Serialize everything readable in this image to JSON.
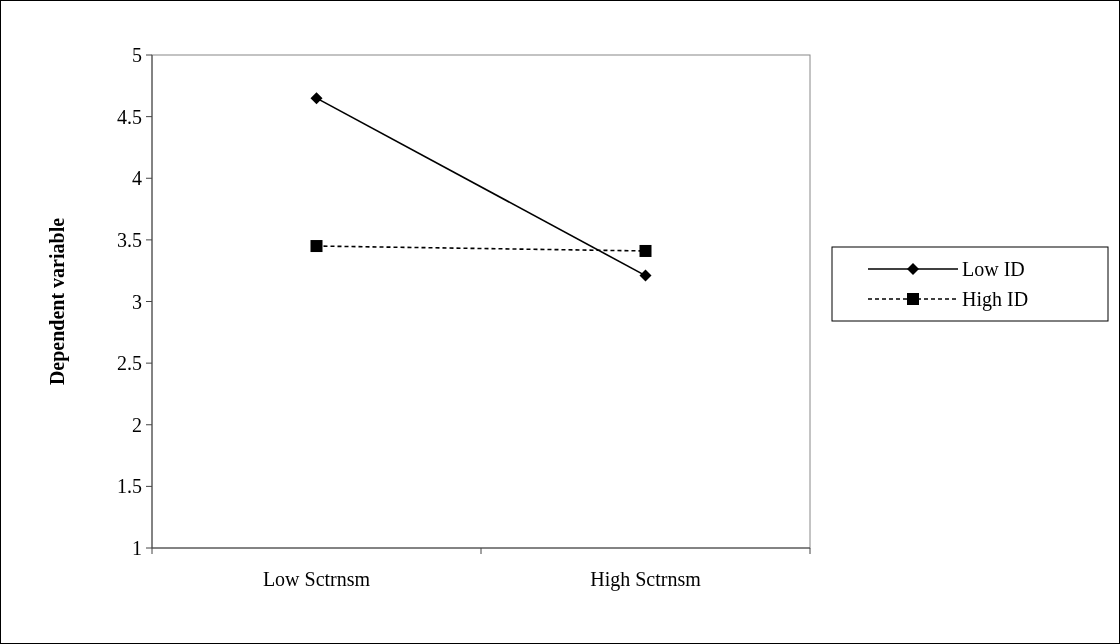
{
  "chart_data": {
    "type": "line",
    "ylabel": "Dependent variable",
    "categories": [
      "Low Sctrnsm",
      "High Sctrnsm"
    ],
    "ylim": [
      1,
      5
    ],
    "yticks": [
      1,
      1.5,
      2,
      2.5,
      3,
      3.5,
      4,
      4.5,
      5
    ],
    "legend": "right",
    "grid": false,
    "series": [
      {
        "name": "Low ID",
        "color": "#000000",
        "values": [
          4.65,
          3.21
        ],
        "marker": "diamond",
        "line_style": "solid"
      },
      {
        "name": "High ID",
        "color": "#000000",
        "values": [
          3.45,
          3.41
        ],
        "marker": "square",
        "line_style": "dashed"
      }
    ]
  }
}
